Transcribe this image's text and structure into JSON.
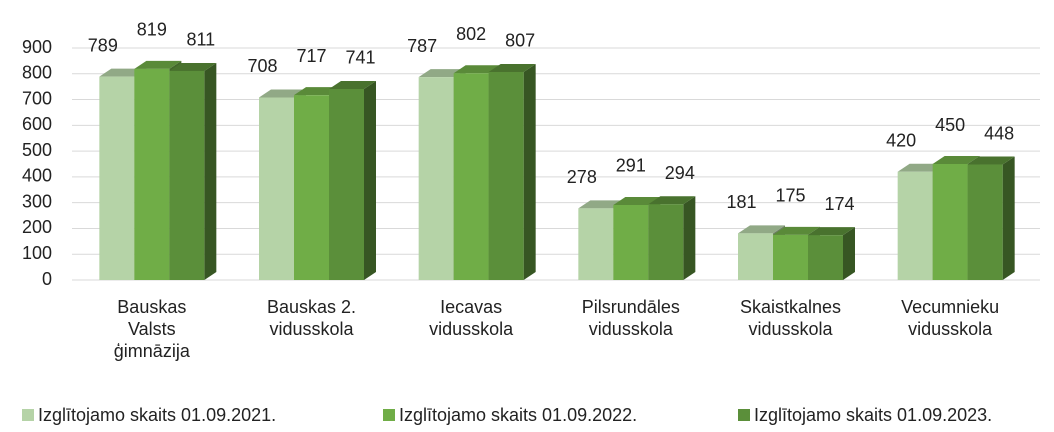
{
  "chart_data": {
    "type": "bar3d",
    "categories": [
      "Bauskas Valsts ģimnāzija",
      "Bauskas 2. vidusskola",
      "Iecavas vidusskola",
      "Pilsrundāles vidusskola",
      "Skaistkalnes vidusskola",
      "Vecumnieku vidusskola"
    ],
    "series": [
      {
        "name": "Izglītojamo skaits 01.09.2021.",
        "color": "#b5d3a7",
        "values": [
          789,
          708,
          787,
          278,
          181,
          420
        ]
      },
      {
        "name": "Izglītojamo skaits 01.09.2022.",
        "color": "#70ad47",
        "values": [
          819,
          717,
          802,
          291,
          175,
          450
        ]
      },
      {
        "name": "Izglītojamo skaits 01.09.2023.",
        "color": "#5b8f3a",
        "values": [
          811,
          741,
          807,
          294,
          174,
          448
        ]
      }
    ],
    "ylim": [
      0,
      900
    ],
    "yticks": [
      0,
      100,
      200,
      300,
      400,
      500,
      600,
      700,
      800,
      900
    ],
    "grid": true,
    "legend": "bottom"
  }
}
